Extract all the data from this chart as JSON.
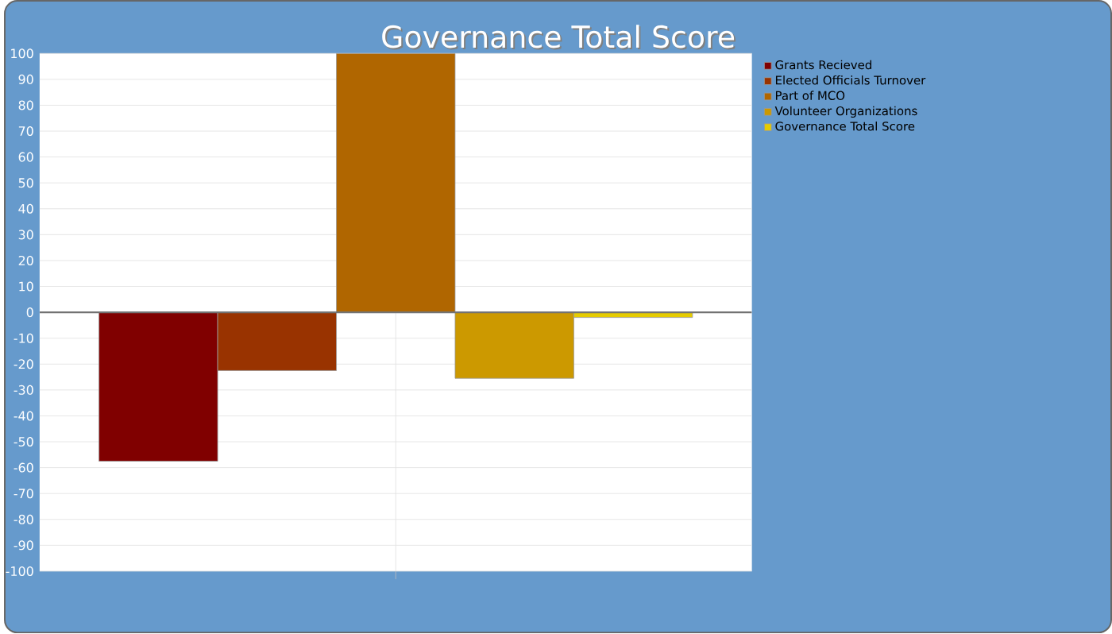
{
  "chart_data": {
    "type": "bar",
    "title": "Governance Total Score",
    "categories": [
      null
    ],
    "series": [
      {
        "name": "Grants Recieved",
        "color": "#800000",
        "values": [
          -57.5
        ]
      },
      {
        "name": "Elected Officials Turnover",
        "color": "#993300",
        "values": [
          -22.5
        ]
      },
      {
        "name": "Part of MCO",
        "color": "#b06600",
        "values": [
          100
        ]
      },
      {
        "name": "Volunteer Organizations",
        "color": "#cc9900",
        "values": [
          -25.5
        ]
      },
      {
        "name": "Governance Total Score",
        "color": "#e6cc00",
        "values": [
          -2
        ]
      }
    ],
    "ylim": [
      -100,
      100
    ],
    "yticks": [
      -100,
      -90,
      -80,
      -70,
      -60,
      -50,
      -40,
      -30,
      -20,
      -10,
      0,
      10,
      20,
      30,
      40,
      50,
      60,
      70,
      80,
      90,
      100
    ],
    "grid": true,
    "legend": "top right"
  }
}
